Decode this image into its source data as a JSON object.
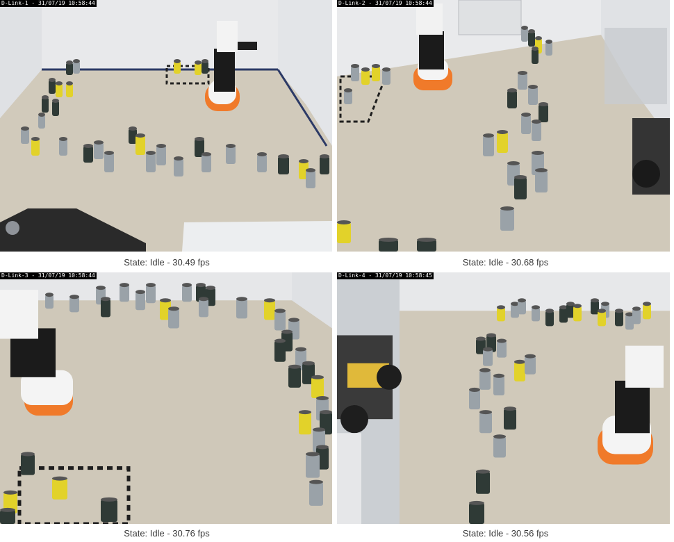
{
  "cameras": [
    {
      "overlay": "D-Link-1 - 31/07/19 10:58:44",
      "status": "State: Idle - 30.49 fps"
    },
    {
      "overlay": "D-Link-2 - 31/07/19 10:58:44",
      "status": "State: Idle - 30.68 fps"
    },
    {
      "overlay": "D-Link-3 - 31/07/19 10:58:44",
      "status": "State: Idle - 30.76 fps"
    },
    {
      "overlay": "D-Link-4 - 31/07/19 10:58:45",
      "status": "State: Idle - 30.56 fps"
    }
  ],
  "colors": {
    "floor": "#d2cbbd",
    "wall": "#e9eaec",
    "can_dark": "#2f3a36",
    "can_grey": "#9aa2a8",
    "can_yellow": "#e2d22a",
    "robot_white": "#f2f2f2",
    "robot_black": "#1c1c1c",
    "robot_orange": "#f07a2a"
  }
}
